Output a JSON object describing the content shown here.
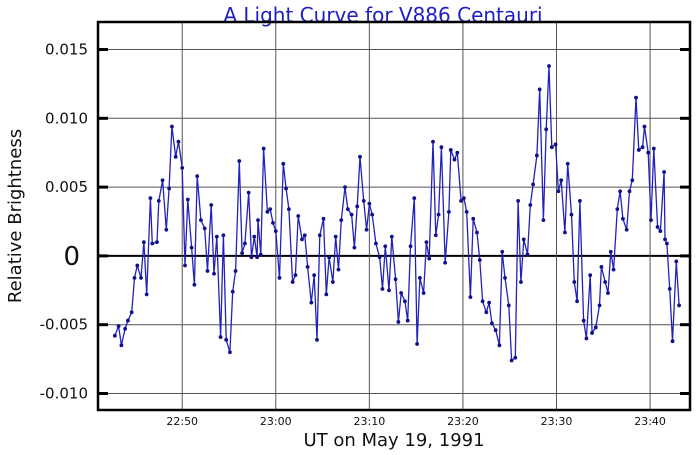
{
  "chart_data": {
    "type": "line",
    "title": "A Light Curve for V886 Centauri",
    "xlabel": "UT on May 19, 1991",
    "ylabel": "Relative Brightness",
    "xlim": [
      "22:41:00",
      "23:44:16"
    ],
    "ylim": [
      -0.0112,
      0.017
    ],
    "grid": true,
    "markers": true,
    "line_color": "#2222bb",
    "marker_color": "#10108a",
    "title_color": "#1f1fc4",
    "xticks": [
      {
        "value": "22:50:00",
        "label": "22:50"
      },
      {
        "value": "23:00:00",
        "label": "23:00"
      },
      {
        "value": "23:10:00",
        "label": "23:10"
      },
      {
        "value": "23:20:00",
        "label": "23:20"
      },
      {
        "value": "23:30:00",
        "label": "23:30"
      },
      {
        "value": "23:40:00",
        "label": "23:40"
      }
    ],
    "yticks": [
      {
        "value": 0.015,
        "label": "0.015"
      },
      {
        "value": 0.01,
        "label": "0.010"
      },
      {
        "value": 0.005,
        "label": "0.005"
      },
      {
        "value": 0,
        "label": "0"
      },
      {
        "value": -0.005,
        "label": "-0.005"
      },
      {
        "value": -0.01,
        "label": "-0.010"
      }
    ],
    "x": [
      "22:42:48",
      "22:43:12",
      "22:43:30",
      "22:43:54",
      "22:44:12",
      "22:44:36",
      "22:44:54",
      "22:45:12",
      "22:45:36",
      "22:45:54",
      "22:46:12",
      "22:46:36",
      "22:46:48",
      "22:47:18",
      "22:47:30",
      "22:47:54",
      "22:48:18",
      "22:48:36",
      "22:48:54",
      "22:49:18",
      "22:49:36",
      "22:50:00",
      "22:50:18",
      "22:50:36",
      "22:51:00",
      "22:51:18",
      "22:51:36",
      "22:52:00",
      "22:52:24",
      "22:52:42",
      "22:53:06",
      "22:53:24",
      "22:53:42",
      "22:54:06",
      "22:54:24",
      "22:54:42",
      "22:55:06",
      "22:55:24",
      "22:55:42",
      "22:56:06",
      "22:56:24",
      "22:56:42",
      "22:57:06",
      "22:57:24",
      "22:57:42",
      "22:58:00",
      "22:58:06",
      "22:58:24",
      "22:58:42",
      "22:59:06",
      "22:59:24",
      "22:59:42",
      "23:00:00",
      "23:00:24",
      "23:00:48",
      "23:01:06",
      "23:01:24",
      "23:01:48",
      "23:02:06",
      "23:02:24",
      "23:02:48",
      "23:03:06",
      "23:03:24",
      "23:03:48",
      "23:04:06",
      "23:04:24",
      "23:04:42",
      "23:05:06",
      "23:05:24",
      "23:05:42",
      "23:06:06",
      "23:06:24",
      "23:06:42",
      "23:07:00",
      "23:07:24",
      "23:07:42",
      "23:08:06",
      "23:08:24",
      "23:08:42",
      "23:09:00",
      "23:09:24",
      "23:09:42",
      "23:10:00",
      "23:10:18",
      "23:10:42",
      "23:11:06",
      "23:11:24",
      "23:11:42",
      "23:12:06",
      "23:12:24",
      "23:12:48",
      "23:13:06",
      "23:13:24",
      "23:13:48",
      "23:14:06",
      "23:14:24",
      "23:14:48",
      "23:15:06",
      "23:15:24",
      "23:15:48",
      "23:16:06",
      "23:16:24",
      "23:16:48",
      "23:17:06",
      "23:17:24",
      "23:17:42",
      "23:18:06",
      "23:18:30",
      "23:18:42",
      "23:19:06",
      "23:19:24",
      "23:19:48",
      "23:20:06",
      "23:20:24",
      "23:20:48",
      "23:21:06",
      "23:21:30",
      "23:21:48",
      "23:22:06",
      "23:22:30",
      "23:22:48",
      "23:23:06",
      "23:23:30",
      "23:23:54",
      "23:24:12",
      "23:24:30",
      "23:24:54",
      "23:25:12",
      "23:25:36",
      "23:25:54",
      "23:26:12",
      "23:26:30",
      "23:26:54",
      "23:27:12",
      "23:27:30",
      "23:27:54",
      "23:28:12",
      "23:28:36",
      "23:28:54",
      "23:29:12",
      "23:29:30",
      "23:29:54",
      "23:30:12",
      "23:30:30",
      "23:30:54",
      "23:31:12",
      "23:31:36",
      "23:31:54",
      "23:32:12",
      "23:32:30",
      "23:32:54",
      "23:33:12",
      "23:33:36",
      "23:33:48",
      "23:34:12",
      "23:34:36",
      "23:34:48",
      "23:35:12",
      "23:35:30",
      "23:35:48",
      "23:36:06",
      "23:36:30",
      "23:36:48",
      "23:37:06",
      "23:37:30",
      "23:37:48",
      "23:38:06",
      "23:38:30",
      "23:38:48",
      "23:39:12",
      "23:39:24",
      "23:39:48",
      "23:40:06",
      "23:40:24",
      "23:40:48",
      "23:41:06",
      "23:41:30",
      "23:41:36",
      "23:41:48",
      "23:42:06",
      "23:42:24",
      "23:42:48",
      "23:43:06"
    ],
    "y": [
      -0.0058,
      -0.0051,
      -0.0065,
      -0.0053,
      -0.0047,
      -0.0041,
      -0.0016,
      -0.0007,
      -0.0016,
      0.001,
      -0.0028,
      0.0042,
      0.0009,
      0.001,
      0.004,
      0.0055,
      0.0019,
      0.0049,
      0.0094,
      0.0072,
      0.0083,
      0.0064,
      -0.0007,
      0.0041,
      0.0006,
      -0.0021,
      0.0058,
      0.0026,
      0.002,
      -0.0011,
      0.0037,
      -0.0013,
      0.0014,
      -0.0059,
      0.0015,
      -0.0061,
      -0.007,
      -0.0026,
      -0.0011,
      0.0069,
      0.0002,
      0.0009,
      0.0046,
      -0.0001,
      0.0014,
      -0.0001,
      0.0026,
      0.0001,
      0.0078,
      0.0032,
      0.0034,
      0.0024,
      0.0018,
      -0.0016,
      0.0067,
      0.0049,
      0.0034,
      -0.0019,
      -0.0014,
      0.0029,
      0.0012,
      0.0015,
      -0.0008,
      -0.0034,
      -0.0014,
      -0.0061,
      0.0015,
      0.0027,
      -0.0028,
      -0.0001,
      -0.0019,
      0.0014,
      -0.001,
      0.0026,
      0.005,
      0.0034,
      0.003,
      0.0006,
      0.0036,
      0.0072,
      0.004,
      0.0019,
      0.0038,
      0.003,
      0.0009,
      -0.0001,
      -0.0024,
      0.0007,
      -0.0025,
      0.0014,
      -0.0017,
      -0.0048,
      -0.0027,
      -0.0033,
      -0.0047,
      0.0007,
      0.0042,
      -0.0064,
      -0.0016,
      -0.0027,
      0.001,
      -0.0002,
      0.0083,
      0.0015,
      0.003,
      0.0079,
      -0.0005,
      0.0032,
      0.0077,
      0.007,
      0.0075,
      0.004,
      0.0042,
      0.0032,
      -0.003,
      0.0027,
      0.0017,
      -0.0003,
      -0.0033,
      -0.0041,
      -0.0034,
      -0.0049,
      -0.0054,
      -0.0065,
      0.0003,
      -0.0016,
      -0.0036,
      -0.0076,
      -0.0074,
      0.004,
      -0.0019,
      0.0012,
      0.0001,
      0.0037,
      0.0052,
      0.0073,
      0.0121,
      0.0026,
      0.0092,
      0.0138,
      0.0079,
      0.0081,
      0.0047,
      0.0055,
      0.0017,
      0.0067,
      0.003,
      -0.0019,
      -0.0033,
      0.004,
      -0.0047,
      -0.006,
      -0.0014,
      -0.0056,
      -0.0052,
      -0.0036,
      -0.0008,
      -0.0019,
      -0.0027,
      0.0003,
      -0.001,
      0.0034,
      0.0047,
      0.0027,
      0.0019,
      0.0047,
      0.0055,
      0.0115,
      0.0077,
      0.0079,
      0.0094,
      0.0075,
      0.0026,
      0.0078,
      0.0021,
      0.0018,
      0.0061,
      0.0012,
      0.0009,
      -0.0024,
      -0.0062,
      -0.0004,
      -0.0036
    ]
  }
}
